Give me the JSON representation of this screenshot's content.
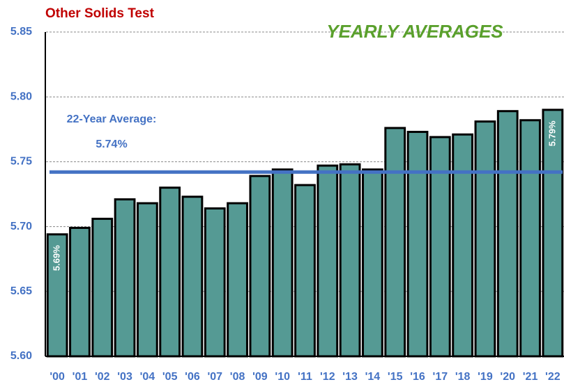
{
  "chart_data": {
    "type": "bar",
    "title": "Other Solids Test",
    "subtitle": "YEARLY AVERAGES",
    "annotation": "22-Year Average:",
    "average_label": "5.74%",
    "average": 5.742,
    "categories": [
      "'00",
      "'01",
      "'02",
      "'03",
      "'04",
      "'05",
      "'06",
      "'07",
      "'08",
      "'09",
      "'10",
      "'11",
      "'12",
      "'13",
      "'14",
      "'15",
      "'16",
      "'17",
      "'18",
      "'19",
      "'20",
      "'21",
      "'22"
    ],
    "values": [
      5.694,
      5.699,
      5.706,
      5.721,
      5.718,
      5.73,
      5.723,
      5.714,
      5.718,
      5.739,
      5.744,
      5.732,
      5.747,
      5.748,
      5.744,
      5.776,
      5.773,
      5.769,
      5.771,
      5.781,
      5.789,
      5.782,
      5.79
    ],
    "value_labels": [
      "5.69%",
      null,
      null,
      null,
      null,
      null,
      null,
      null,
      null,
      null,
      null,
      null,
      null,
      null,
      null,
      null,
      null,
      null,
      null,
      null,
      null,
      null,
      "5.79%"
    ],
    "color": "#559a94",
    "average_color": "#4472c4",
    "ylim": [
      5.6,
      5.85
    ],
    "yticks": [
      {
        "value": 5.6,
        "label": "5.60"
      },
      {
        "value": 5.65,
        "label": "5.65"
      },
      {
        "value": 5.7,
        "label": "5.70"
      },
      {
        "value": 5.75,
        "label": "5.75"
      },
      {
        "value": 5.8,
        "label": "5.80"
      },
      {
        "value": 5.85,
        "label": "5.85"
      }
    ],
    "grid": true
  }
}
